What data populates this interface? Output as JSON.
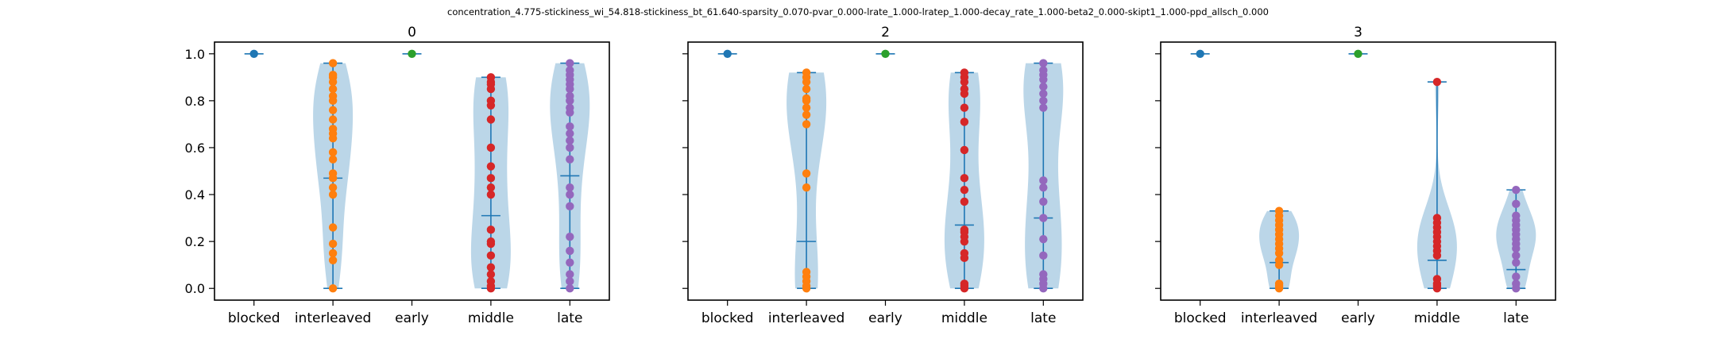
{
  "figure_title": "concentration_4.775-stickiness_wi_54.818-stickiness_bt_61.640-sparsity_0.070-pvar_0.000-lrate_1.000-lratep_1.000-decay_rate_1.000-beta2_0.000-skipt1_1.000-ppd_allsch_0.000",
  "colors": {
    "violin_fill": "#1f77b4",
    "violin_line": "#1f77b4",
    "blocked": "#1f77b4",
    "interleaved": "#ff7f0e",
    "early": "#2ca02c",
    "middle": "#d62728",
    "late": "#9467bd"
  },
  "chart_data": [
    {
      "type": "violin",
      "title": "0",
      "categories": [
        "blocked",
        "interleaved",
        "early",
        "middle",
        "late"
      ],
      "ylim": [
        -0.05,
        1.05
      ],
      "yticks": [
        0.0,
        0.2,
        0.4,
        0.6,
        0.8,
        1.0
      ],
      "ytick_labels": [
        "0.0",
        "0.2",
        "0.4",
        "0.6",
        "0.8",
        "1.0"
      ],
      "show_yticklabels": true,
      "grid": false,
      "series": [
        {
          "category": "blocked",
          "min": 1.0,
          "max": 1.0,
          "median": 1.0,
          "points": [
            1.0
          ]
        },
        {
          "category": "interleaved",
          "min": 0.0,
          "max": 0.96,
          "median": 0.47,
          "points": [
            0.0,
            0.12,
            0.15,
            0.19,
            0.26,
            0.4,
            0.43,
            0.47,
            0.49,
            0.55,
            0.58,
            0.64,
            0.66,
            0.68,
            0.72,
            0.76,
            0.8,
            0.82,
            0.85,
            0.88,
            0.9,
            0.91,
            0.96
          ]
        },
        {
          "category": "early",
          "min": 1.0,
          "max": 1.0,
          "median": 1.0,
          "points": [
            1.0
          ]
        },
        {
          "category": "middle",
          "min": 0.0,
          "max": 0.9,
          "median": 0.31,
          "points": [
            0.0,
            0.01,
            0.03,
            0.06,
            0.09,
            0.14,
            0.19,
            0.2,
            0.25,
            0.4,
            0.43,
            0.47,
            0.52,
            0.6,
            0.72,
            0.78,
            0.8,
            0.85,
            0.87,
            0.88,
            0.9
          ]
        },
        {
          "category": "late",
          "min": 0.0,
          "max": 0.96,
          "median": 0.48,
          "points": [
            0.0,
            0.03,
            0.06,
            0.11,
            0.16,
            0.22,
            0.35,
            0.4,
            0.43,
            0.55,
            0.6,
            0.63,
            0.66,
            0.69,
            0.75,
            0.77,
            0.8,
            0.82,
            0.85,
            0.87,
            0.89,
            0.91,
            0.93,
            0.96
          ]
        }
      ]
    },
    {
      "type": "violin",
      "title": "2",
      "categories": [
        "blocked",
        "interleaved",
        "early",
        "middle",
        "late"
      ],
      "ylim": [
        -0.05,
        1.05
      ],
      "yticks": [
        0.0,
        0.2,
        0.4,
        0.6,
        0.8,
        1.0
      ],
      "ytick_labels": [
        "0.0",
        "0.2",
        "0.4",
        "0.6",
        "0.8",
        "1.0"
      ],
      "show_yticklabels": false,
      "grid": false,
      "series": [
        {
          "category": "blocked",
          "min": 1.0,
          "max": 1.0,
          "median": 1.0,
          "points": [
            1.0
          ]
        },
        {
          "category": "interleaved",
          "min": 0.0,
          "max": 0.92,
          "median": 0.2,
          "points": [
            0.0,
            0.01,
            0.03,
            0.05,
            0.07,
            0.43,
            0.49,
            0.7,
            0.74,
            0.77,
            0.8,
            0.81,
            0.85,
            0.88,
            0.9,
            0.92
          ]
        },
        {
          "category": "early",
          "min": 1.0,
          "max": 1.0,
          "median": 1.0,
          "points": [
            1.0
          ]
        },
        {
          "category": "middle",
          "min": 0.0,
          "max": 0.92,
          "median": 0.27,
          "points": [
            0.0,
            0.01,
            0.02,
            0.13,
            0.15,
            0.2,
            0.22,
            0.24,
            0.25,
            0.37,
            0.42,
            0.47,
            0.59,
            0.71,
            0.77,
            0.83,
            0.85,
            0.88,
            0.9,
            0.92
          ]
        },
        {
          "category": "late",
          "min": 0.0,
          "max": 0.96,
          "median": 0.3,
          "points": [
            0.0,
            0.02,
            0.04,
            0.06,
            0.14,
            0.21,
            0.3,
            0.37,
            0.43,
            0.46,
            0.77,
            0.8,
            0.83,
            0.86,
            0.89,
            0.91,
            0.93,
            0.96
          ]
        }
      ]
    },
    {
      "type": "violin",
      "title": "3",
      "categories": [
        "blocked",
        "interleaved",
        "early",
        "middle",
        "late"
      ],
      "ylim": [
        -0.05,
        1.05
      ],
      "yticks": [
        0.0,
        0.2,
        0.4,
        0.6,
        0.8,
        1.0
      ],
      "ytick_labels": [
        "0.0",
        "0.2",
        "0.4",
        "0.6",
        "0.8",
        "1.0"
      ],
      "show_yticklabels": false,
      "grid": false,
      "series": [
        {
          "category": "blocked",
          "min": 1.0,
          "max": 1.0,
          "median": 1.0,
          "points": [
            1.0
          ]
        },
        {
          "category": "interleaved",
          "min": 0.0,
          "max": 0.33,
          "median": 0.11,
          "points": [
            0.0,
            0.01,
            0.02,
            0.1,
            0.12,
            0.15,
            0.17,
            0.19,
            0.21,
            0.23,
            0.25,
            0.27,
            0.29,
            0.31,
            0.33
          ]
        },
        {
          "category": "early",
          "min": 1.0,
          "max": 1.0,
          "median": 1.0,
          "points": [
            1.0
          ]
        },
        {
          "category": "middle",
          "min": 0.0,
          "max": 0.88,
          "median": 0.12,
          "points": [
            0.0,
            0.01,
            0.02,
            0.04,
            0.14,
            0.16,
            0.18,
            0.2,
            0.22,
            0.24,
            0.26,
            0.28,
            0.3,
            0.88
          ]
        },
        {
          "category": "late",
          "min": 0.0,
          "max": 0.42,
          "median": 0.08,
          "points": [
            0.0,
            0.02,
            0.05,
            0.11,
            0.14,
            0.17,
            0.19,
            0.21,
            0.23,
            0.25,
            0.27,
            0.29,
            0.31,
            0.36,
            0.42
          ]
        }
      ]
    }
  ]
}
